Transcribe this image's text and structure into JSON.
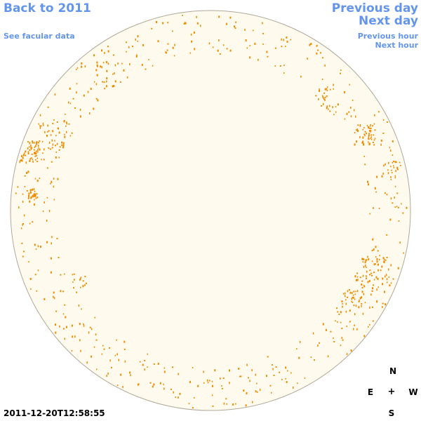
{
  "nav": {
    "back_label": "Back to 2011",
    "facular_label": "See facular data",
    "prev_day_label": "Previous day",
    "next_day_label": "Next day",
    "prev_hour_label": "Previous hour",
    "next_hour_label": "Next hour"
  },
  "compass": {
    "n": "N",
    "e": "E",
    "center": "+",
    "w": "W",
    "s": "S"
  },
  "timestamp": "2011-12-20T12:58:55",
  "colors": {
    "link": "#6495ed",
    "disk_fill": "#fffaee",
    "disk_stroke": "#b0a898",
    "facula": "#f08c00"
  }
}
